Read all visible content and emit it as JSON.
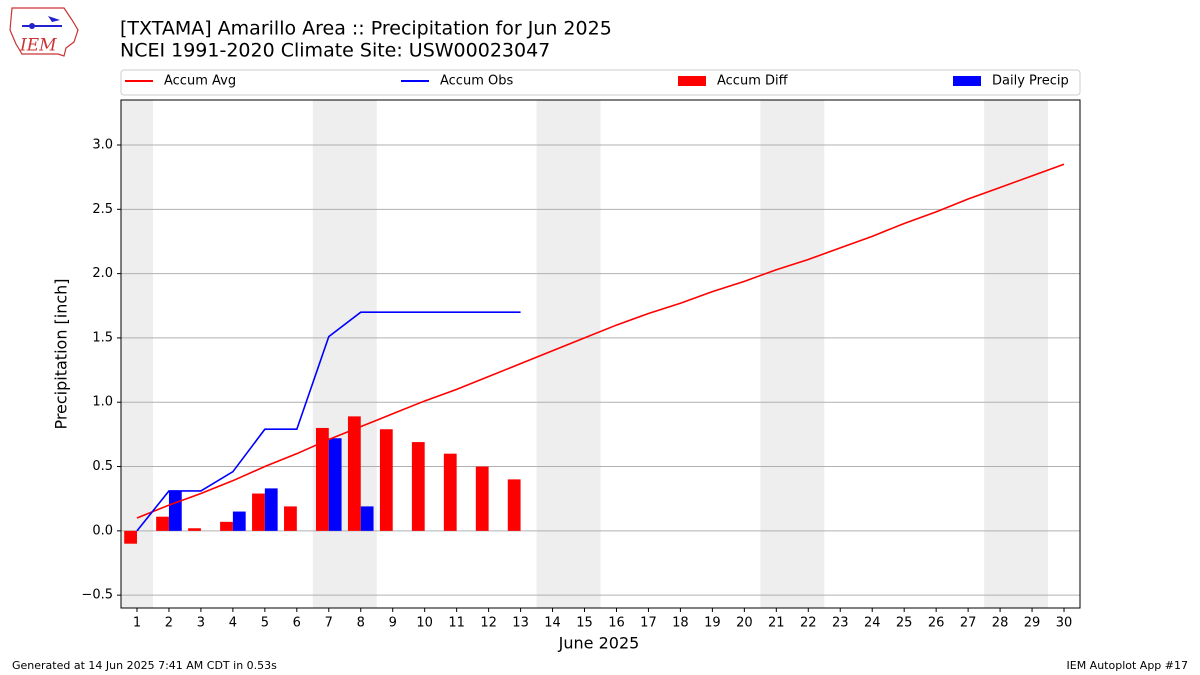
{
  "chart_data": {
    "type": "bar",
    "title": "[TXTAMA] Amarillo Area :: Precipitation for Jun 2025",
    "subtitle": "NCEI 1991-2020 Climate Site: USW00023047",
    "logo_text": "IEM",
    "x_label": "June 2025",
    "y_label": "Precipitation [inch]",
    "footer_left": "Generated at 14 Jun 2025 7:41 AM CDT in 0.53s",
    "footer_right": "IEM Autoplot App #17",
    "x": [
      1,
      2,
      3,
      4,
      5,
      6,
      7,
      8,
      9,
      10,
      11,
      12,
      13,
      14,
      15,
      16,
      17,
      18,
      19,
      20,
      21,
      22,
      23,
      24,
      25,
      26,
      27,
      28,
      29,
      30
    ],
    "xlim": [
      0.5,
      30.5
    ],
    "xticks": [
      1,
      2,
      3,
      4,
      5,
      6,
      7,
      8,
      9,
      10,
      11,
      12,
      13,
      14,
      15,
      16,
      17,
      18,
      19,
      20,
      21,
      22,
      23,
      24,
      25,
      26,
      27,
      28,
      29,
      30
    ],
    "ylim": [
      -0.6,
      3.35
    ],
    "yticks": [
      {
        "value": -0.5,
        "label": "−0.5"
      },
      {
        "value": 0,
        "label": "0.0"
      },
      {
        "value": 0.5,
        "label": "0.5"
      },
      {
        "value": 1,
        "label": "1.0"
      },
      {
        "value": 1.5,
        "label": "1.5"
      },
      {
        "value": 2,
        "label": "2.0"
      },
      {
        "value": 2.5,
        "label": "2.5"
      },
      {
        "value": 3,
        "label": "3.0"
      }
    ],
    "grid": true,
    "shaded_spans": [
      [
        0.5,
        1.5
      ],
      [
        6.5,
        8.5
      ],
      [
        13.5,
        15.5
      ],
      [
        20.5,
        22.5
      ],
      [
        27.5,
        29.5
      ]
    ],
    "series": [
      {
        "name": "Accum Avg",
        "type": "line",
        "color": "#ff0000",
        "values": [
          0.1,
          0.2,
          0.29,
          0.39,
          0.5,
          0.6,
          0.71,
          0.81,
          0.91,
          1.01,
          1.1,
          1.2,
          1.3,
          1.4,
          1.5,
          1.6,
          1.69,
          1.77,
          1.86,
          1.94,
          2.03,
          2.11,
          2.2,
          2.29,
          2.39,
          2.48,
          2.58,
          2.67,
          2.76,
          2.85
        ]
      },
      {
        "name": "Accum Obs",
        "type": "line",
        "color": "#0000ff",
        "values": [
          0.0,
          0.31,
          0.31,
          0.46,
          0.79,
          0.79,
          1.51,
          1.7,
          1.7,
          1.7,
          1.7,
          1.7,
          1.7,
          null,
          null,
          null,
          null,
          null,
          null,
          null,
          null,
          null,
          null,
          null,
          null,
          null,
          null,
          null,
          null,
          null
        ]
      },
      {
        "name": "Accum Diff",
        "type": "bar",
        "color": "#ff0000",
        "offset": -0.2,
        "values": [
          -0.1,
          0.11,
          0.02,
          0.07,
          0.29,
          0.19,
          0.8,
          0.89,
          0.79,
          0.69,
          0.6,
          0.5,
          0.4,
          null,
          null,
          null,
          null,
          null,
          null,
          null,
          null,
          null,
          null,
          null,
          null,
          null,
          null,
          null,
          null,
          null
        ]
      },
      {
        "name": "Daily Precip",
        "type": "bar",
        "color": "#0000ff",
        "offset": 0.2,
        "values": [
          0,
          0.31,
          0,
          0.15,
          0.33,
          0,
          0.72,
          0.19,
          0,
          0,
          0,
          0,
          0,
          null,
          null,
          null,
          null,
          null,
          null,
          null,
          null,
          null,
          null,
          null,
          null,
          null,
          null,
          null,
          null,
          null
        ]
      }
    ]
  }
}
